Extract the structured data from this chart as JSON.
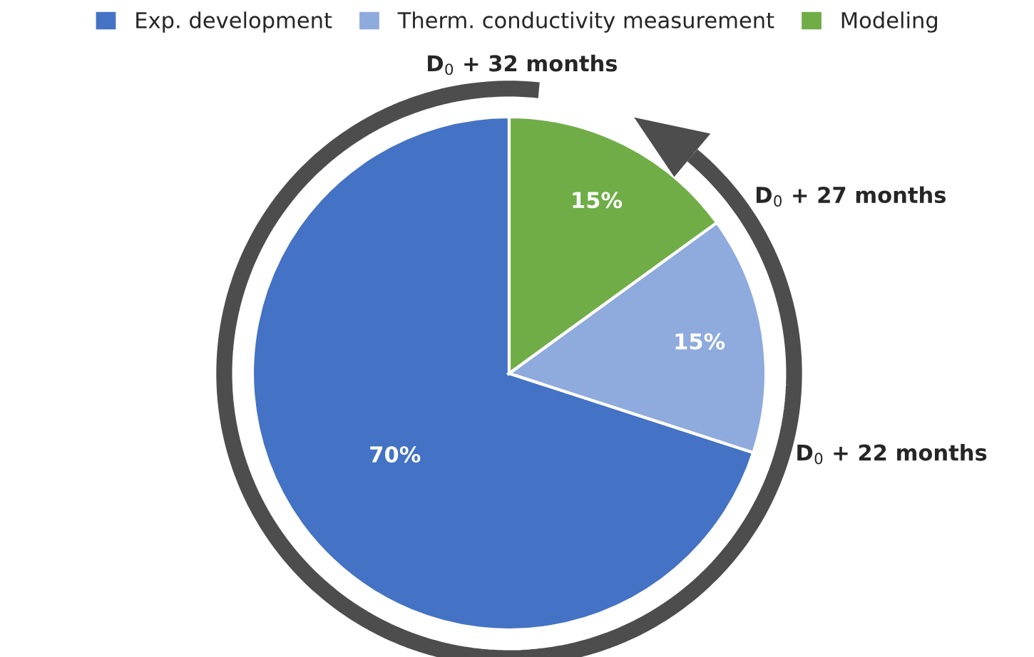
{
  "chart_data": {
    "type": "pie",
    "categories": [
      "Exp. development",
      "Therm. conductivity measurement",
      "Modeling"
    ],
    "values": [
      70,
      15,
      15
    ],
    "colors": [
      "#4472c4",
      "#8faadc",
      "#70ad47"
    ],
    "value_labels": [
      "70%",
      "15%",
      "15%"
    ],
    "legend": "top",
    "annotations": [
      "D$_{0}$ + 22 months",
      "D$_{0}$ + 27 months",
      "D$_{0}$ + 32 months"
    ]
  }
}
